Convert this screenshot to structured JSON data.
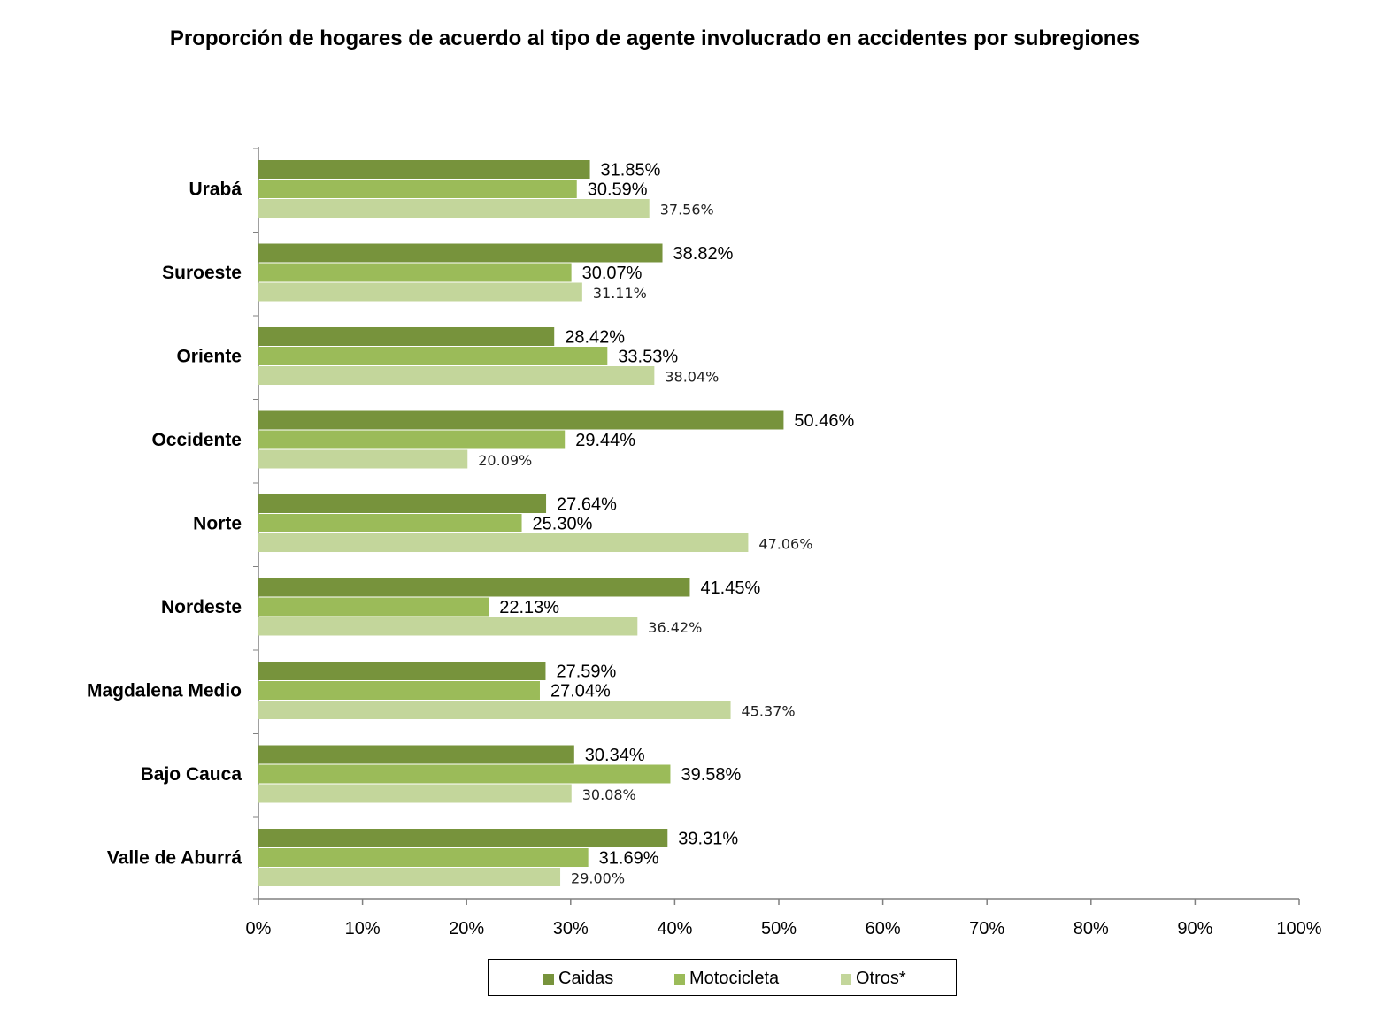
{
  "chart_data": {
    "type": "bar",
    "orientation": "horizontal",
    "title": "Proporción de hogares de acuerdo al tipo de agente involucrado en accidentes por subregiones",
    "categories": [
      "Urabá",
      "Suroeste",
      "Oriente",
      "Occidente",
      "Norte",
      "Nordeste",
      "Magdalena Medio",
      "Bajo Cauca",
      "Valle de Aburrá"
    ],
    "series": [
      {
        "name": "Caidas",
        "color": "#77933c",
        "values": [
          31.85,
          38.82,
          28.42,
          50.46,
          27.64,
          41.45,
          27.59,
          30.34,
          39.31
        ],
        "labels": [
          "31.85%",
          "38.82%",
          "28.42%",
          "50.46%",
          "27.64%",
          "41.45%",
          "27.59%",
          "30.34%",
          "39.31%"
        ]
      },
      {
        "name": "Motocicleta",
        "color": "#9bbb59",
        "values": [
          30.59,
          30.07,
          33.53,
          29.44,
          25.3,
          22.13,
          27.04,
          39.58,
          31.69
        ],
        "labels": [
          "30.59%",
          "30.07%",
          "33.53%",
          "29.44%",
          "25.30%",
          "22.13%",
          "27.04%",
          "39.58%",
          "31.69%"
        ]
      },
      {
        "name": "Otros*",
        "color": "#c3d69b",
        "values": [
          37.56,
          31.11,
          38.04,
          20.09,
          47.06,
          36.42,
          45.37,
          30.08,
          29.0
        ],
        "labels": [
          "37.56%",
          "31.11%",
          "38.04%",
          "20.09%",
          "47.06%",
          "36.42%",
          "45.37%",
          "30.08%",
          "29.00%"
        ]
      }
    ],
    "xlim": [
      0,
      100
    ],
    "x_ticks": [
      "0%",
      "10%",
      "20%",
      "30%",
      "40%",
      "50%",
      "60%",
      "70%",
      "80%",
      "90%",
      "100%"
    ],
    "grid": false,
    "legend_position": "bottom"
  }
}
